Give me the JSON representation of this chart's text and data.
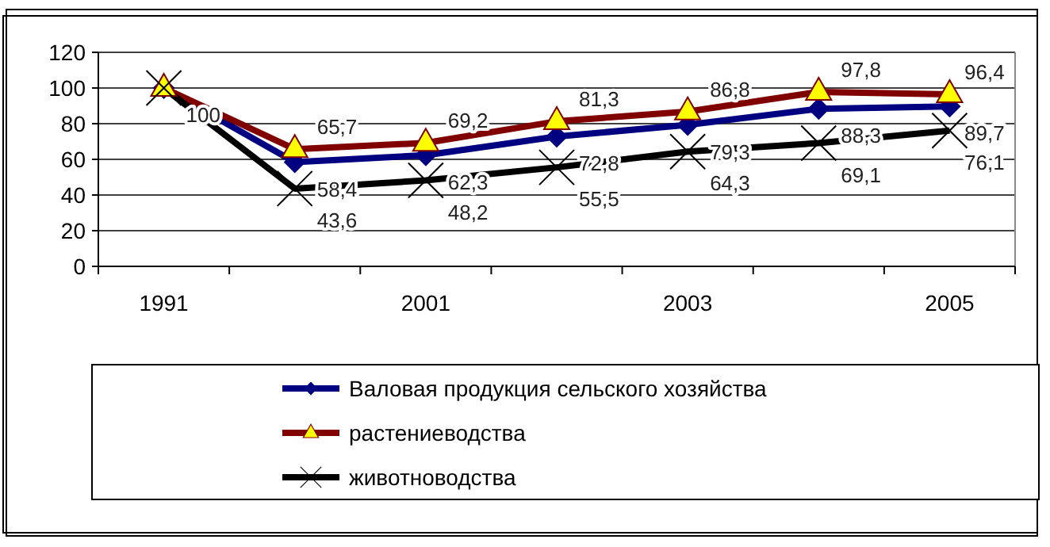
{
  "chart_data": {
    "type": "line",
    "categories": [
      "1991",
      null,
      "2001",
      null,
      "2003",
      null,
      "2005"
    ],
    "ylim": [
      0,
      120
    ],
    "yticks": [
      0,
      20,
      40,
      60,
      80,
      100,
      120
    ],
    "grid": "y",
    "legend": "bottom",
    "series": [
      {
        "name": "Валовая продукция сельского хозяйства",
        "color": "#000080",
        "marker": "diamond",
        "values": [
          100,
          58.4,
          62.3,
          72.8,
          79.3,
          88.3,
          89.7
        ],
        "value_labels": [
          "100",
          "58,4",
          "62,3",
          "72,8",
          "79,3",
          "88,3",
          "89,7"
        ]
      },
      {
        "name": "растениеводства",
        "color": "#800000",
        "marker": "triangle",
        "values": [
          100,
          65.7,
          69.2,
          81.3,
          86.8,
          97.8,
          96.4
        ],
        "value_labels": [
          null,
          "65,7",
          "69,2",
          "81,3",
          "86,8",
          "97,8",
          "96,4"
        ]
      },
      {
        "name": "животноводства",
        "color": "#000000",
        "marker": "cross",
        "values": [
          100,
          43.6,
          48.2,
          55.5,
          64.3,
          69.1,
          76.1
        ],
        "value_labels": [
          null,
          "43,6",
          "48,2",
          "55,5",
          "64,3",
          "69,1",
          "76,1"
        ]
      }
    ]
  }
}
